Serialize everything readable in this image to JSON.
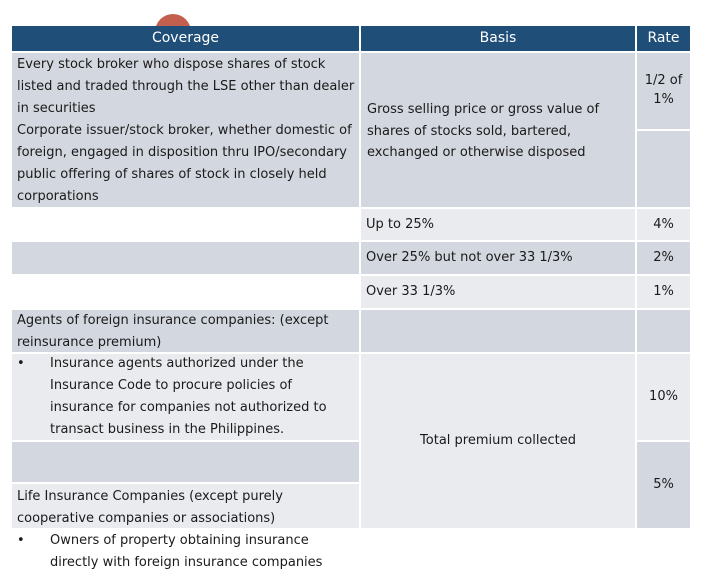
{
  "table": {
    "headers": {
      "coverage": "Coverage",
      "basis": "Basis",
      "rate": "Rate"
    },
    "stock_section": {
      "coverage_items": [
        "Every stock broker who dispose shares of stock listed and traded through the LSE other than dealer in securities",
        "Corporate issuer/stock broker, whether domestic of foreign, engaged in disposition thru IPO/secondary public offering of shares of stock in closely held corporations"
      ],
      "basis": "Gross selling price or gross value of shares of stocks sold, bartered, exchanged or otherwise disposed",
      "rate": "1/2 of 1%",
      "tiers": [
        {
          "basis": "Up to 25%",
          "rate": "4%"
        },
        {
          "basis": "Over 25% but not over 33 1/3%",
          "rate": "2%"
        },
        {
          "basis": "Over 33 1/3%",
          "rate": "1%"
        }
      ]
    },
    "insurance_section": {
      "foreign_agents_label": "Agents of foreign insurance companies: (except reinsurance premium)",
      "bullet_symbol": "•",
      "bullets": [
        "Insurance agents authorized under the Insurance Code to procure policies of insurance for companies not authorized to transact business in the Philippines.",
        "Owners of property obtaining insurance directly with foreign insurance companies"
      ],
      "life_insurance_label": "Life Insurance Companies (except purely cooperative companies or associations)",
      "basis": "Total premium collected",
      "foreign_agents_rate": "10%",
      "life_insurance_rate": "5%"
    }
  }
}
